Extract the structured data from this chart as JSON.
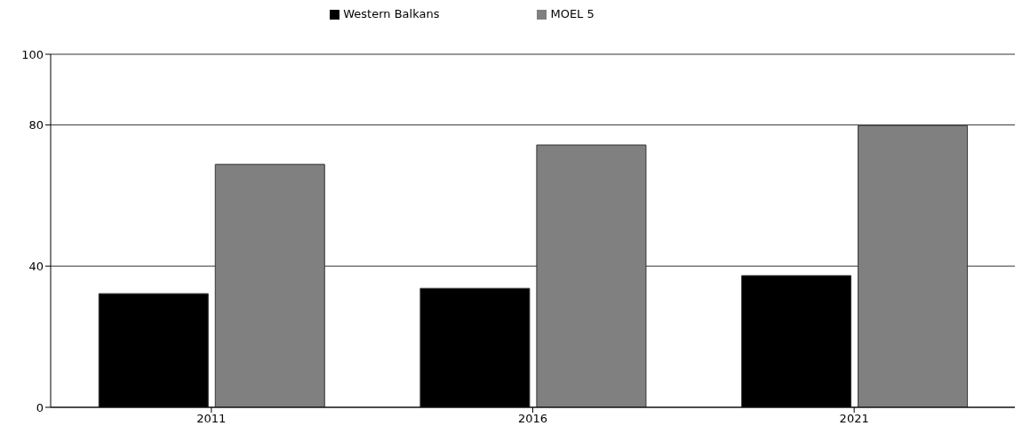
{
  "chart_data": {
    "type": "bar",
    "categories": [
      "2011",
      "2016",
      "2021"
    ],
    "series": [
      {
        "name": "Western Balkans",
        "color": "#000000",
        "values": [
          32.2,
          33.7,
          37.3
        ]
      },
      {
        "name": "MOEL 5",
        "color": "#808080",
        "values": [
          68.8,
          74.3,
          79.8
        ]
      }
    ],
    "ylim": [
      0,
      100
    ],
    "yticks": [
      0,
      40,
      80,
      100
    ],
    "grid": "y",
    "legend": "top"
  }
}
